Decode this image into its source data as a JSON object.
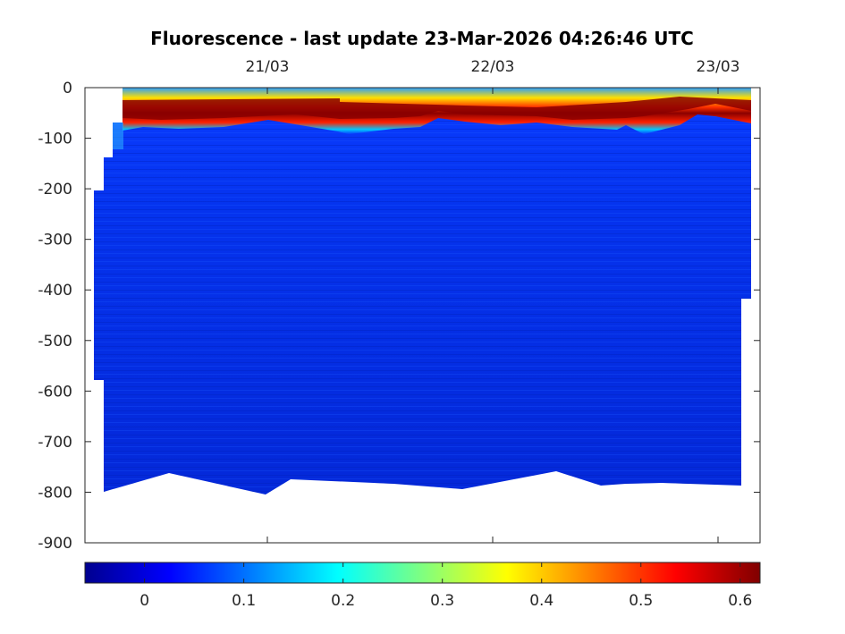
{
  "chart_data": {
    "type": "heatmap",
    "title": "Fluorescence - last update 23-Mar-2026 04:26:46 UTC",
    "xlabel": "",
    "ylabel": "",
    "x_ticks": [
      "21/03",
      "22/03",
      "23/03"
    ],
    "y_ticks": [
      "0",
      "-100",
      "-200",
      "-300",
      "-400",
      "-500",
      "-600",
      "-700",
      "-800",
      "-900"
    ],
    "ylim": [
      -900,
      0
    ],
    "colormap": "jet",
    "colorbar": {
      "orientation": "horizontal",
      "placement": "bottom",
      "range": [
        -0.06,
        0.62
      ],
      "ticks": [
        "0",
        "0.1",
        "0.2",
        "0.3",
        "0.4",
        "0.5",
        "0.6"
      ]
    },
    "description_values": {
      "fluorescence_max_layer_depth_m": [
        -20,
        -55
      ],
      "surface_layer_value_approx": 0.4,
      "max_layer_value_approx": 0.6,
      "deep_value_approx": 0.03
    }
  }
}
